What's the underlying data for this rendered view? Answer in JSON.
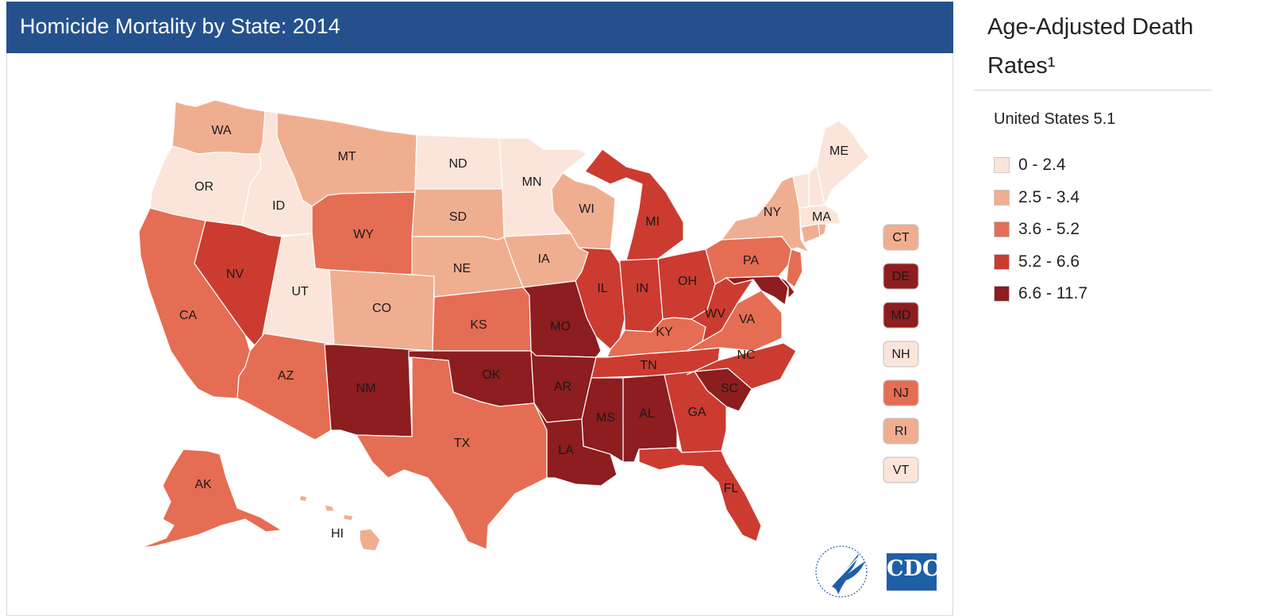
{
  "header": {
    "title": "Homicide Mortality by State: 2014"
  },
  "legend": {
    "title": "Age-Adjusted Death Rates¹",
    "us_rate": "United States 5.1",
    "classes": [
      {
        "label": "0 - 2.4",
        "color": "#fbe5da"
      },
      {
        "label": "2.5 - 3.4",
        "color": "#f0ae91"
      },
      {
        "label": "3.6 - 5.2",
        "color": "#e56d53"
      },
      {
        "label": "5.2 - 6.6",
        "color": "#cc3b30"
      },
      {
        "label": "6.6 - 11.7",
        "color": "#8d1d1f"
      }
    ]
  },
  "states": {
    "WA": 1,
    "OR": 0,
    "ID": 0,
    "MT": 1,
    "WY": 2,
    "CA": 2,
    "NV": 3,
    "UT": 0,
    "AZ": 2,
    "CO": 1,
    "NM": 4,
    "ND": 0,
    "SD": 1,
    "NE": 1,
    "KS": 2,
    "OK": 4,
    "TX": 2,
    "MN": 0,
    "IA": 1,
    "MO": 4,
    "AR": 4,
    "LA": 4,
    "WI": 1,
    "IL": 3,
    "MI": 3,
    "IN": 3,
    "OH": 3,
    "KY": 2,
    "TN": 3,
    "MS": 4,
    "AL": 4,
    "GA": 3,
    "FL": 3,
    "SC": 4,
    "NC": 3,
    "VA": 2,
    "WV": 3,
    "PA": 2,
    "NY": 1,
    "ME": 0,
    "MA": 0,
    "AK": 2,
    "HI": 1,
    "CT": 1,
    "DE": 4,
    "MD": 4,
    "NH": 0,
    "NJ": 2,
    "RI": 1,
    "VT": 0
  },
  "small_states": [
    "CT",
    "DE",
    "MD",
    "NH",
    "NJ",
    "RI",
    "VT"
  ],
  "logos": {
    "cdc_text": "CDC",
    "hhs_icon": "hhs-eagle-icon"
  }
}
